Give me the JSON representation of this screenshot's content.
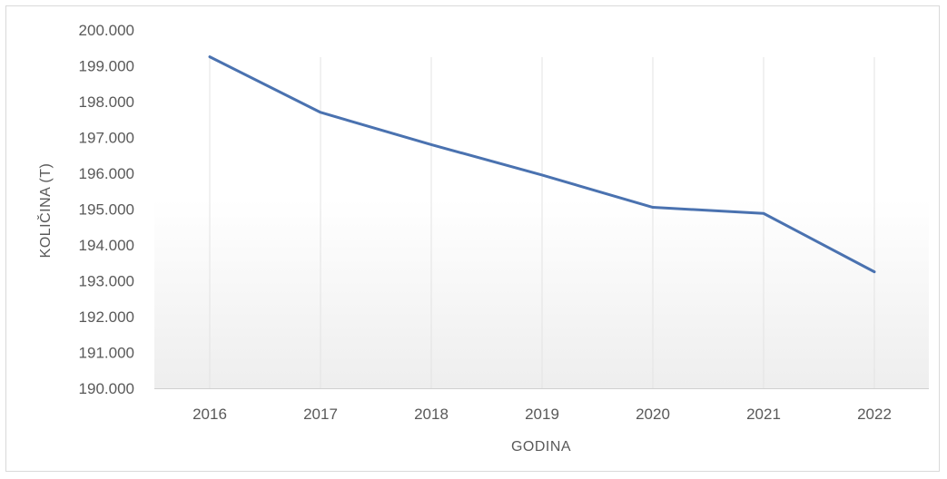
{
  "chart_data": {
    "type": "line",
    "title": "",
    "xlabel": "GODINA",
    "ylabel": "KOLIČINA (T)",
    "categories": [
      "2016",
      "2017",
      "2018",
      "2019",
      "2020",
      "2021",
      "2022"
    ],
    "series": [
      {
        "values": [
          199250,
          197700,
          196800,
          195950,
          195050,
          194880,
          193250
        ],
        "color": "#4a72b0"
      }
    ],
    "ylim": [
      190000,
      200000
    ],
    "yticks": [
      190000,
      191000,
      192000,
      193000,
      194000,
      195000,
      196000,
      197000,
      198000,
      199000,
      200000
    ],
    "ytick_labels": [
      "190.000",
      "191.000",
      "192.000",
      "193.000",
      "194.000",
      "195.000",
      "196.000",
      "197.000",
      "198.000",
      "199.000",
      "200.000"
    ],
    "grid": "vertical",
    "legend": "none",
    "colors": {
      "line": "#4a72b0",
      "gridline": "#e3e3e3",
      "axis": "#d0d0d0",
      "text": "#595959"
    }
  }
}
